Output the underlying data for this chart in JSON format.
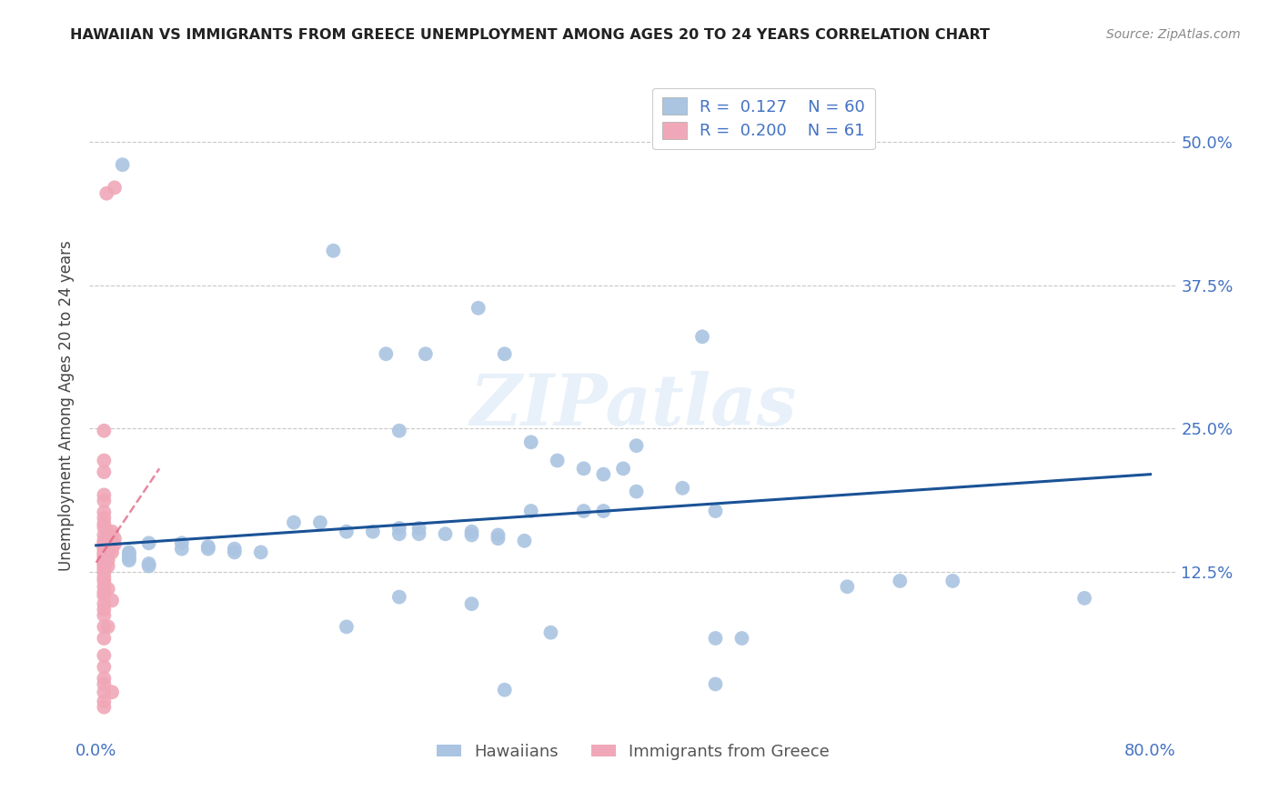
{
  "title": "HAWAIIAN VS IMMIGRANTS FROM GREECE UNEMPLOYMENT AMONG AGES 20 TO 24 YEARS CORRELATION CHART",
  "source": "Source: ZipAtlas.com",
  "ylabel": "Unemployment Among Ages 20 to 24 years",
  "ytick_labels": [
    "50.0%",
    "37.5%",
    "25.0%",
    "12.5%"
  ],
  "ytick_values": [
    0.5,
    0.375,
    0.25,
    0.125
  ],
  "xlim": [
    -0.005,
    0.82
  ],
  "ylim": [
    -0.02,
    0.56
  ],
  "watermark_text": "ZIPatlas",
  "legend_blue_R": "0.127",
  "legend_blue_N": "60",
  "legend_pink_R": "0.200",
  "legend_pink_N": "61",
  "blue_color": "#aac4e2",
  "blue_line_color": "#1a5296",
  "pink_color": "#f0a8b8",
  "pink_line_color": "#e06080",
  "blue_scatter": [
    [
      0.02,
      0.48
    ],
    [
      0.18,
      0.405
    ],
    [
      0.22,
      0.315
    ],
    [
      0.25,
      0.315
    ],
    [
      0.29,
      0.355
    ],
    [
      0.31,
      0.315
    ],
    [
      0.46,
      0.33
    ],
    [
      0.23,
      0.248
    ],
    [
      0.33,
      0.238
    ],
    [
      0.41,
      0.235
    ],
    [
      0.35,
      0.222
    ],
    [
      0.37,
      0.215
    ],
    [
      0.385,
      0.21
    ],
    [
      0.4,
      0.215
    ],
    [
      0.41,
      0.195
    ],
    [
      0.37,
      0.178
    ],
    [
      0.385,
      0.178
    ],
    [
      0.445,
      0.198
    ],
    [
      0.33,
      0.178
    ],
    [
      0.47,
      0.178
    ],
    [
      0.15,
      0.168
    ],
    [
      0.17,
      0.168
    ],
    [
      0.19,
      0.16
    ],
    [
      0.21,
      0.16
    ],
    [
      0.23,
      0.158
    ],
    [
      0.23,
      0.163
    ],
    [
      0.245,
      0.158
    ],
    [
      0.245,
      0.163
    ],
    [
      0.265,
      0.158
    ],
    [
      0.285,
      0.16
    ],
    [
      0.285,
      0.157
    ],
    [
      0.305,
      0.157
    ],
    [
      0.305,
      0.154
    ],
    [
      0.325,
      0.152
    ],
    [
      0.04,
      0.15
    ],
    [
      0.065,
      0.15
    ],
    [
      0.065,
      0.145
    ],
    [
      0.085,
      0.147
    ],
    [
      0.085,
      0.145
    ],
    [
      0.105,
      0.145
    ],
    [
      0.105,
      0.142
    ],
    [
      0.125,
      0.142
    ],
    [
      0.025,
      0.142
    ],
    [
      0.025,
      0.14
    ],
    [
      0.025,
      0.137
    ],
    [
      0.025,
      0.135
    ],
    [
      0.04,
      0.132
    ],
    [
      0.04,
      0.13
    ],
    [
      0.23,
      0.103
    ],
    [
      0.285,
      0.097
    ],
    [
      0.19,
      0.077
    ],
    [
      0.345,
      0.072
    ],
    [
      0.47,
      0.067
    ],
    [
      0.49,
      0.067
    ],
    [
      0.57,
      0.112
    ],
    [
      0.61,
      0.117
    ],
    [
      0.65,
      0.117
    ],
    [
      0.75,
      0.102
    ],
    [
      0.47,
      0.027
    ],
    [
      0.31,
      0.022
    ]
  ],
  "pink_scatter": [
    [
      0.008,
      0.455
    ],
    [
      0.014,
      0.46
    ],
    [
      0.006,
      0.248
    ],
    [
      0.006,
      0.222
    ],
    [
      0.006,
      0.212
    ],
    [
      0.006,
      0.192
    ],
    [
      0.006,
      0.187
    ],
    [
      0.006,
      0.177
    ],
    [
      0.006,
      0.172
    ],
    [
      0.006,
      0.167
    ],
    [
      0.006,
      0.164
    ],
    [
      0.009,
      0.16
    ],
    [
      0.012,
      0.16
    ],
    [
      0.006,
      0.157
    ],
    [
      0.009,
      0.157
    ],
    [
      0.012,
      0.157
    ],
    [
      0.014,
      0.154
    ],
    [
      0.006,
      0.152
    ],
    [
      0.006,
      0.15
    ],
    [
      0.009,
      0.15
    ],
    [
      0.012,
      0.149
    ],
    [
      0.014,
      0.149
    ],
    [
      0.006,
      0.147
    ],
    [
      0.009,
      0.147
    ],
    [
      0.012,
      0.146
    ],
    [
      0.006,
      0.145
    ],
    [
      0.009,
      0.145
    ],
    [
      0.006,
      0.142
    ],
    [
      0.009,
      0.142
    ],
    [
      0.012,
      0.142
    ],
    [
      0.006,
      0.14
    ],
    [
      0.009,
      0.14
    ],
    [
      0.006,
      0.138
    ],
    [
      0.006,
      0.135
    ],
    [
      0.009,
      0.135
    ],
    [
      0.006,
      0.132
    ],
    [
      0.006,
      0.13
    ],
    [
      0.009,
      0.13
    ],
    [
      0.006,
      0.127
    ],
    [
      0.006,
      0.124
    ],
    [
      0.006,
      0.12
    ],
    [
      0.006,
      0.117
    ],
    [
      0.006,
      0.112
    ],
    [
      0.009,
      0.11
    ],
    [
      0.006,
      0.107
    ],
    [
      0.006,
      0.104
    ],
    [
      0.012,
      0.1
    ],
    [
      0.006,
      0.097
    ],
    [
      0.006,
      0.092
    ],
    [
      0.006,
      0.087
    ],
    [
      0.006,
      0.077
    ],
    [
      0.009,
      0.077
    ],
    [
      0.006,
      0.067
    ],
    [
      0.006,
      0.052
    ],
    [
      0.006,
      0.042
    ],
    [
      0.006,
      0.032
    ],
    [
      0.006,
      0.027
    ],
    [
      0.006,
      0.02
    ],
    [
      0.012,
      0.02
    ],
    [
      0.006,
      0.012
    ],
    [
      0.006,
      0.007
    ]
  ],
  "blue_trendline": [
    [
      0.0,
      0.148
    ],
    [
      0.8,
      0.21
    ]
  ],
  "pink_trendline": [
    [
      0.0,
      0.133
    ],
    [
      0.048,
      0.215
    ]
  ]
}
